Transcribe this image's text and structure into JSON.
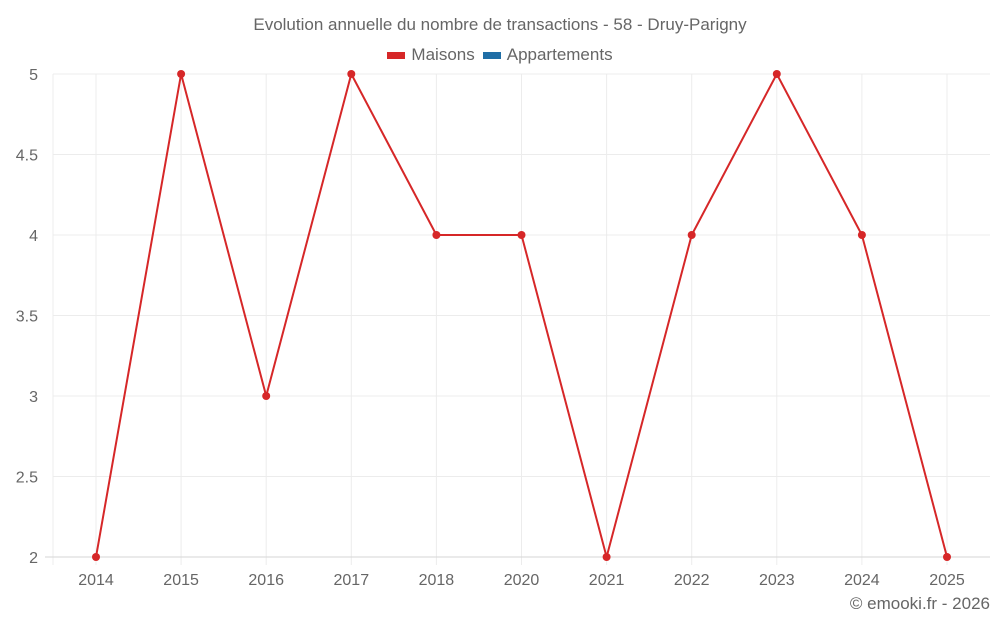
{
  "chart_data": {
    "type": "line",
    "title": "Evolution annuelle du nombre de transactions - 58 - Druy-Parigny",
    "categories": [
      "2014",
      "2015",
      "2016",
      "2017",
      "2018",
      "2020",
      "2021",
      "2022",
      "2023",
      "2024",
      "2025"
    ],
    "series": [
      {
        "name": "Maisons",
        "color": "#d62728",
        "values": [
          2,
          5,
          3,
          5,
          4,
          4,
          2,
          4,
          5,
          4,
          2
        ]
      },
      {
        "name": "Appartements",
        "color": "#1f6ea6",
        "values": []
      }
    ],
    "xlabel": "",
    "ylabel": "",
    "ylim": [
      2,
      5
    ],
    "yticks": [
      "2",
      "2.5",
      "3",
      "3.5",
      "4",
      "4.5",
      "5"
    ],
    "grid": true,
    "legend_position": "top"
  },
  "legend": [
    {
      "label": "Maisons",
      "color": "#d62728"
    },
    {
      "label": "Appartements",
      "color": "#1f6ea6"
    }
  ],
  "credit": "© emooki.fr - 2026"
}
